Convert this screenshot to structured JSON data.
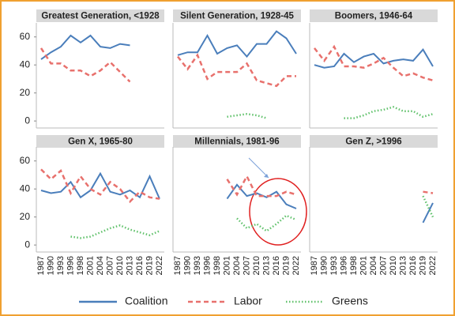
{
  "chart_data": [
    {
      "type": "line",
      "title": "Greatest Generation, <1928",
      "categories": [
        "1987",
        "1990",
        "1993",
        "1996",
        "1998",
        "2001",
        "2004",
        "2007",
        "2010",
        "2013",
        "2016",
        "2019",
        "2022"
      ],
      "ylim": [
        -5,
        70
      ],
      "yticks": [
        0,
        20,
        40,
        60
      ],
      "series": [
        {
          "name": "Coalition",
          "color": "#4a7ebb",
          "values": [
            44,
            49,
            53,
            61,
            56,
            61,
            53,
            52,
            55,
            54,
            null,
            null,
            null
          ]
        },
        {
          "name": "Labor",
          "color": "#e8716d",
          "values": [
            52,
            41,
            41,
            36,
            36,
            32,
            36,
            42,
            35,
            28,
            null,
            null,
            null
          ]
        },
        {
          "name": "Greens",
          "color": "#5fc16a",
          "values": [
            null,
            null,
            null,
            null,
            null,
            null,
            null,
            null,
            null,
            null,
            null,
            null,
            null
          ]
        }
      ]
    },
    {
      "type": "line",
      "title": "Silent Generation, 1928-45",
      "categories": [
        "1987",
        "1990",
        "1993",
        "1996",
        "1998",
        "2001",
        "2004",
        "2007",
        "2010",
        "2013",
        "2016",
        "2019",
        "2022"
      ],
      "ylim": [
        -5,
        70
      ],
      "series": [
        {
          "name": "Coalition",
          "color": "#4a7ebb",
          "values": [
            47,
            49,
            49,
            61,
            48,
            52,
            54,
            46,
            55,
            55,
            64,
            59,
            48
          ]
        },
        {
          "name": "Labor",
          "color": "#e8716d",
          "values": [
            46,
            37,
            47,
            30,
            35,
            35,
            35,
            41,
            29,
            27,
            25,
            32,
            32
          ]
        },
        {
          "name": "Greens",
          "color": "#5fc16a",
          "values": [
            null,
            null,
            null,
            null,
            null,
            3,
            4,
            5,
            4,
            2,
            null,
            null,
            null
          ]
        }
      ]
    },
    {
      "type": "line",
      "title": "Boomers, 1946-64",
      "categories": [
        "1987",
        "1990",
        "1993",
        "1996",
        "1998",
        "2001",
        "2004",
        "2007",
        "2010",
        "2013",
        "2016",
        "2019",
        "2022"
      ],
      "ylim": [
        -5,
        70
      ],
      "series": [
        {
          "name": "Coalition",
          "color": "#4a7ebb",
          "values": [
            40,
            38,
            39,
            48,
            42,
            46,
            48,
            41,
            43,
            44,
            43,
            51,
            39
          ]
        },
        {
          "name": "Labor",
          "color": "#e8716d",
          "values": [
            52,
            43,
            53,
            39,
            39,
            38,
            41,
            45,
            38,
            32,
            34,
            31,
            29
          ]
        },
        {
          "name": "Greens",
          "color": "#5fc16a",
          "values": [
            null,
            null,
            null,
            2,
            2,
            4,
            7,
            8,
            10,
            7,
            7,
            3,
            5
          ]
        }
      ]
    },
    {
      "type": "line",
      "title": "Gen X, 1965-80",
      "categories": [
        "1987",
        "1990",
        "1993",
        "1996",
        "1998",
        "2001",
        "2004",
        "2007",
        "2010",
        "2013",
        "2016",
        "2019",
        "2022"
      ],
      "ylim": [
        -5,
        70
      ],
      "yticks": [
        0,
        20,
        40,
        60
      ],
      "series": [
        {
          "name": "Coalition",
          "color": "#4a7ebb",
          "values": [
            39,
            37,
            38,
            45,
            34,
            39,
            51,
            38,
            36,
            39,
            34,
            49,
            33
          ]
        },
        {
          "name": "Labor",
          "color": "#e8716d",
          "values": [
            54,
            47,
            53,
            37,
            49,
            40,
            36,
            45,
            40,
            31,
            38,
            34,
            33
          ]
        },
        {
          "name": "Greens",
          "color": "#5fc16a",
          "values": [
            null,
            null,
            null,
            6,
            5,
            6,
            9,
            12,
            14,
            11,
            9,
            7,
            10
          ]
        }
      ]
    },
    {
      "type": "line",
      "title": "Millennials, 1981-96",
      "categories": [
        "1987",
        "1990",
        "1993",
        "1996",
        "1998",
        "2001",
        "2004",
        "2007",
        "2010",
        "2013",
        "2016",
        "2019",
        "2022"
      ],
      "ylim": [
        -5,
        70
      ],
      "series": [
        {
          "name": "Coalition",
          "color": "#4a7ebb",
          "values": [
            null,
            null,
            null,
            null,
            null,
            33,
            43,
            35,
            37,
            34,
            38,
            29,
            26
          ]
        },
        {
          "name": "Labor",
          "color": "#e8716d",
          "values": [
            null,
            null,
            null,
            null,
            null,
            47,
            36,
            49,
            35,
            35,
            35,
            38,
            36
          ]
        },
        {
          "name": "Greens",
          "color": "#5fc16a",
          "values": [
            null,
            null,
            null,
            null,
            null,
            null,
            19,
            12,
            15,
            10,
            15,
            21,
            18
          ]
        }
      ]
    },
    {
      "type": "line",
      "title": "Gen Z, >1996",
      "categories": [
        "1987",
        "1990",
        "1993",
        "1996",
        "1998",
        "2001",
        "2004",
        "2007",
        "2010",
        "2013",
        "2016",
        "2019",
        "2022"
      ],
      "ylim": [
        -5,
        70
      ],
      "series": [
        {
          "name": "Coalition",
          "color": "#4a7ebb",
          "values": [
            null,
            null,
            null,
            null,
            null,
            null,
            null,
            null,
            null,
            null,
            null,
            16,
            30
          ]
        },
        {
          "name": "Labor",
          "color": "#e8716d",
          "values": [
            null,
            null,
            null,
            null,
            null,
            null,
            null,
            null,
            null,
            null,
            null,
            38,
            37
          ]
        },
        {
          "name": "Greens",
          "color": "#5fc16a",
          "values": [
            null,
            null,
            null,
            null,
            null,
            null,
            null,
            null,
            null,
            null,
            null,
            35,
            20
          ]
        }
      ]
    }
  ]
}
